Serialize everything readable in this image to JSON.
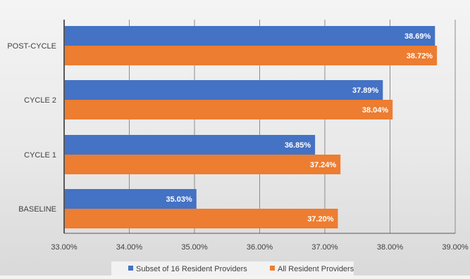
{
  "chart_data": {
    "type": "bar",
    "orientation": "horizontal",
    "categories": [
      "POST-CYCLE",
      "CYCLE 2",
      "CYCLE 1",
      "BASELINE"
    ],
    "series": [
      {
        "name": "Subset of 16 Resident Providers",
        "color": "#4472C4",
        "values": [
          38.69,
          37.89,
          36.85,
          35.03
        ],
        "labels": [
          "38.69%",
          "37.89%",
          "36.85%",
          "35.03%"
        ]
      },
      {
        "name": "All Resident Providers",
        "color": "#ED7D31",
        "values": [
          38.72,
          38.04,
          37.24,
          37.2
        ],
        "labels": [
          "38.72%",
          "38.04%",
          "37.24%",
          "37.20%"
        ]
      }
    ],
    "xlim": [
      33.0,
      39.0
    ],
    "xticks": [
      33,
      34,
      35,
      36,
      37,
      38,
      39
    ],
    "xtick_labels": [
      "33.00%",
      "34.00%",
      "35.00%",
      "36.00%",
      "37.00%",
      "38.00%",
      "39.00%"
    ],
    "grid": "vertical",
    "legend_position": "bottom",
    "gridline_color": "#8c8c8c",
    "axis_color": "#595959"
  }
}
